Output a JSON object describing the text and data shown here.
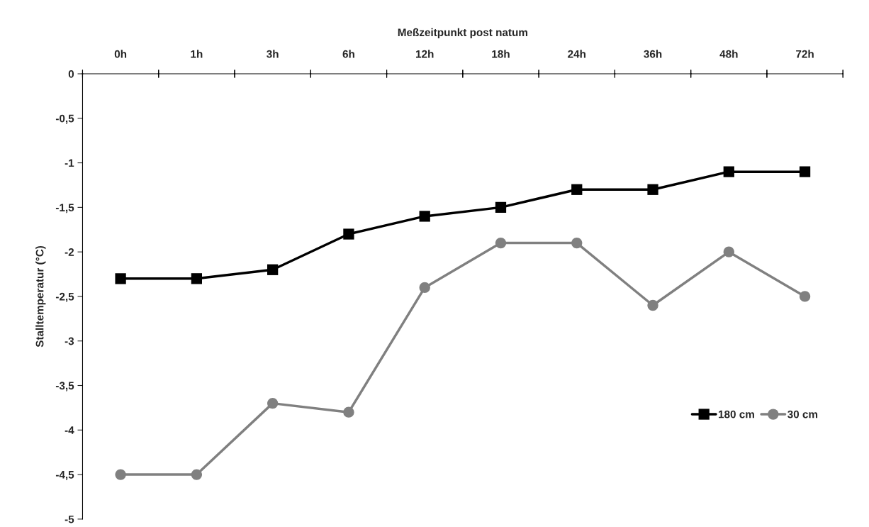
{
  "chart_data": {
    "type": "line",
    "xlabel": "Meßzeitpunkt post natum",
    "ylabel": "Stalltemperatur (°C)",
    "categories": [
      "0h",
      "1h",
      "3h",
      "6h",
      "12h",
      "18h",
      "24h",
      "36h",
      "48h",
      "72h"
    ],
    "series": [
      {
        "name": "180 cm",
        "color": "#000000",
        "marker": "square",
        "values": [
          -2.3,
          -2.3,
          -2.2,
          -1.8,
          -1.6,
          -1.5,
          -1.3,
          -1.3,
          -1.1,
          -1.1
        ]
      },
      {
        "name": "30 cm",
        "color": "#808080",
        "marker": "circle",
        "values": [
          -4.5,
          -4.5,
          -3.7,
          -3.8,
          -2.4,
          -1.9,
          -1.9,
          -2.6,
          -2.0,
          -2.5
        ]
      }
    ],
    "ylim": [
      -5,
      0
    ],
    "yticks": [
      0,
      {
        "value": -0.5,
        "label": "-0,5"
      },
      -1,
      {
        "value": -1.5,
        "label": "-1,5"
      },
      -2,
      {
        "value": -2.5,
        "label": "-2,5"
      },
      -3,
      {
        "value": -3.5,
        "label": "-3,5"
      },
      -4,
      {
        "value": -4.5,
        "label": "-4,5"
      },
      -5
    ],
    "grid": false,
    "legend": "bottom right",
    "line_style": "solid"
  }
}
